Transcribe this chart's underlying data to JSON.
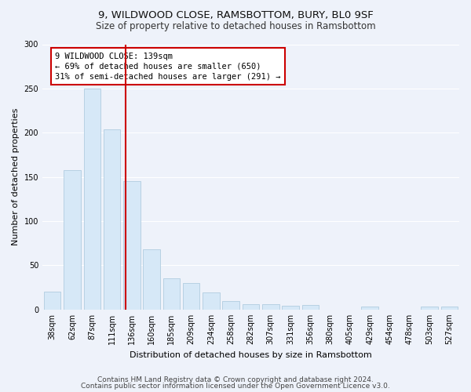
{
  "title1": "9, WILDWOOD CLOSE, RAMSBOTTOM, BURY, BL0 9SF",
  "title2": "Size of property relative to detached houses in Ramsbottom",
  "xlabel": "Distribution of detached houses by size in Ramsbottom",
  "ylabel": "Number of detached properties",
  "bar_labels": [
    "38sqm",
    "62sqm",
    "87sqm",
    "111sqm",
    "136sqm",
    "160sqm",
    "185sqm",
    "209sqm",
    "234sqm",
    "258sqm",
    "282sqm",
    "307sqm",
    "331sqm",
    "356sqm",
    "380sqm",
    "405sqm",
    "429sqm",
    "454sqm",
    "478sqm",
    "503sqm",
    "527sqm"
  ],
  "bar_values": [
    20,
    158,
    250,
    204,
    145,
    68,
    35,
    30,
    19,
    10,
    6,
    6,
    4,
    5,
    0,
    0,
    3,
    0,
    0,
    3,
    3
  ],
  "bar_color": "#d6e8f7",
  "bar_edge_color": "#b0ccdf",
  "annotation_text": "9 WILDWOOD CLOSE: 139sqm\n← 69% of detached houses are smaller (650)\n31% of semi-detached houses are larger (291) →",
  "annotation_box_color": "#ffffff",
  "annotation_box_edge": "#cc0000",
  "line_color": "#cc0000",
  "footer1": "Contains HM Land Registry data © Crown copyright and database right 2024.",
  "footer2": "Contains public sector information licensed under the Open Government Licence v3.0.",
  "ylim": [
    0,
    300
  ],
  "yticks": [
    0,
    50,
    100,
    150,
    200,
    250,
    300
  ],
  "bg_color": "#eef2fa",
  "grid_color": "#ffffff",
  "title1_fontsize": 9.5,
  "title2_fontsize": 8.5,
  "xlabel_fontsize": 8,
  "ylabel_fontsize": 8,
  "tick_fontsize": 7,
  "footer_fontsize": 6.5,
  "annot_fontsize": 7.5
}
